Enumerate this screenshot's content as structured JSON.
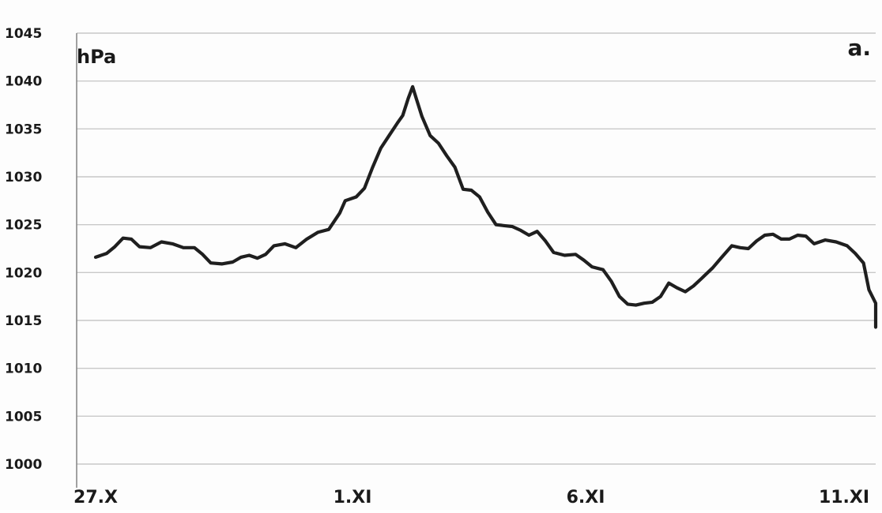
{
  "chart_data": {
    "type": "line",
    "ylabel": "hPa",
    "panel_label": "a.",
    "ylim": [
      1000,
      1045
    ],
    "yticks": [
      1000,
      1005,
      1010,
      1015,
      1020,
      1025,
      1030,
      1035,
      1040,
      1045
    ],
    "xlim": [
      0,
      15
    ],
    "xticks": [
      {
        "value": 0,
        "label": "27.X"
      },
      {
        "value": 5,
        "label": "1.XI"
      },
      {
        "value": 10,
        "label": "6.XI"
      },
      {
        "value": 15,
        "label": "11.XI"
      }
    ],
    "grid": true,
    "series": [
      {
        "color": "#1f1f1f",
        "points": [
          [
            0.0,
            1021.6
          ],
          [
            0.2,
            1022.0
          ],
          [
            0.35,
            1022.7
          ],
          [
            0.5,
            1023.6
          ],
          [
            0.65,
            1023.5
          ],
          [
            0.8,
            1022.7
          ],
          [
            1.0,
            1022.6
          ],
          [
            1.2,
            1023.2
          ],
          [
            1.4,
            1023.0
          ],
          [
            1.6,
            1022.6
          ],
          [
            1.8,
            1022.6
          ],
          [
            1.95,
            1021.9
          ],
          [
            2.1,
            1021.0
          ],
          [
            2.3,
            1020.9
          ],
          [
            2.5,
            1021.1
          ],
          [
            2.65,
            1021.6
          ],
          [
            2.8,
            1021.8
          ],
          [
            2.95,
            1021.5
          ],
          [
            3.1,
            1021.9
          ],
          [
            3.25,
            1022.8
          ],
          [
            3.45,
            1023.0
          ],
          [
            3.65,
            1022.6
          ],
          [
            3.85,
            1023.5
          ],
          [
            4.05,
            1024.2
          ],
          [
            4.25,
            1024.5
          ],
          [
            4.45,
            1026.2
          ],
          [
            4.55,
            1027.5
          ],
          [
            4.75,
            1027.9
          ],
          [
            4.9,
            1028.8
          ],
          [
            5.05,
            1031.0
          ],
          [
            5.2,
            1033.0
          ],
          [
            5.35,
            1034.3
          ],
          [
            5.5,
            1035.6
          ],
          [
            5.6,
            1036.4
          ],
          [
            5.7,
            1038.2
          ],
          [
            5.78,
            1039.4
          ],
          [
            5.85,
            1038.1
          ],
          [
            5.95,
            1036.3
          ],
          [
            6.1,
            1034.3
          ],
          [
            6.25,
            1033.5
          ],
          [
            6.4,
            1032.2
          ],
          [
            6.55,
            1031.0
          ],
          [
            6.7,
            1028.7
          ],
          [
            6.85,
            1028.6
          ],
          [
            7.0,
            1027.9
          ],
          [
            7.15,
            1026.3
          ],
          [
            7.3,
            1025.0
          ],
          [
            7.45,
            1024.9
          ],
          [
            7.6,
            1024.8
          ],
          [
            7.75,
            1024.4
          ],
          [
            7.9,
            1023.9
          ],
          [
            8.05,
            1024.3
          ],
          [
            8.2,
            1023.3
          ],
          [
            8.35,
            1022.1
          ],
          [
            8.55,
            1021.8
          ],
          [
            8.75,
            1021.9
          ],
          [
            8.9,
            1021.3
          ],
          [
            9.05,
            1020.6
          ],
          [
            9.25,
            1020.3
          ],
          [
            9.4,
            1019.1
          ],
          [
            9.55,
            1017.5
          ],
          [
            9.7,
            1016.7
          ],
          [
            9.85,
            1016.6
          ],
          [
            10.0,
            1016.8
          ],
          [
            10.15,
            1016.9
          ],
          [
            10.3,
            1017.5
          ],
          [
            10.45,
            1018.9
          ],
          [
            10.6,
            1018.4
          ],
          [
            10.75,
            1018.0
          ],
          [
            10.9,
            1018.6
          ],
          [
            11.05,
            1019.4
          ],
          [
            11.25,
            1020.5
          ],
          [
            11.4,
            1021.5
          ],
          [
            11.6,
            1022.8
          ],
          [
            11.75,
            1022.6
          ],
          [
            11.9,
            1022.5
          ],
          [
            12.05,
            1023.3
          ],
          [
            12.2,
            1023.9
          ],
          [
            12.35,
            1024.0
          ],
          [
            12.5,
            1023.5
          ],
          [
            12.65,
            1023.5
          ],
          [
            12.8,
            1023.9
          ],
          [
            12.95,
            1023.8
          ],
          [
            13.1,
            1023.0
          ],
          [
            13.3,
            1023.4
          ],
          [
            13.5,
            1023.2
          ],
          [
            13.7,
            1022.8
          ],
          [
            13.85,
            1022.0
          ],
          [
            14.0,
            1021.0
          ],
          [
            14.1,
            1018.2
          ],
          [
            14.3,
            1016.8
          ],
          [
            14.5,
            1016.2
          ],
          [
            14.7,
            1015.3
          ],
          [
            14.85,
            1015.2
          ],
          [
            15.0,
            1015.7
          ],
          [
            15.15,
            1016.2
          ],
          [
            15.3,
            1015.4
          ],
          [
            15.45,
            1015.1
          ],
          [
            15.6,
            1015.2
          ],
          [
            15.75,
            1014.6
          ],
          [
            15.8,
            1014.3
          ]
        ]
      }
    ]
  }
}
